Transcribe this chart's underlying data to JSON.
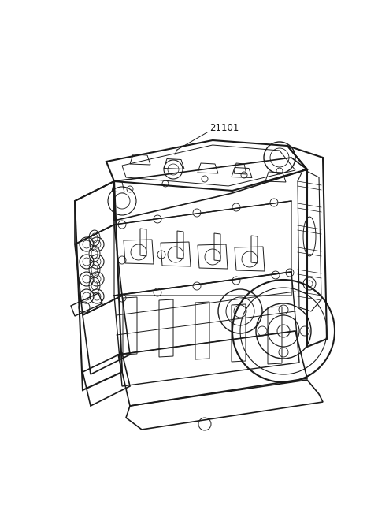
{
  "background_color": "#ffffff",
  "line_color": "#1a1a1a",
  "label_text": "21101",
  "figure_width": 4.8,
  "figure_height": 6.56,
  "dpi": 100,
  "label_fontsize": 8.5
}
